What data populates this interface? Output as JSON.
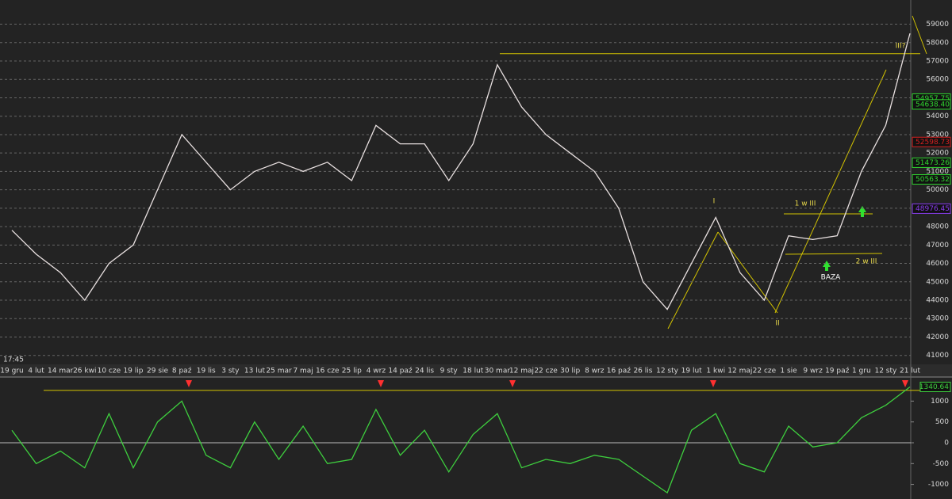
{
  "time_label": "17:45",
  "chart_data": [
    {
      "type": "line",
      "categories": [
        "19 gru",
        "4 lut",
        "14 mar",
        "26 kwi",
        "10 cze",
        "19 lip",
        "29 sie",
        "8 paź",
        "19 lis",
        "3 sty",
        "13 lut",
        "25 mar",
        "7 maj",
        "16 cze",
        "25 lip",
        "4 wrz",
        "14 paź",
        "24 lis",
        "9 sty",
        "18 lut",
        "30 mar",
        "12 maj",
        "22 cze",
        "30 lip",
        "8 wrz",
        "16 paź",
        "26 lis",
        "12 sty",
        "19 lut",
        "1 kwi",
        "12 maj",
        "22 cze",
        "1 sie",
        "9 wrz",
        "19 paź",
        "1 gru",
        "12 sty",
        "21 lut"
      ],
      "series": [
        {
          "color": "#e8e0e0",
          "values": [
            47800,
            46500,
            45500,
            44000,
            46000,
            47000,
            50000,
            53000,
            51500,
            50000,
            51000,
            51500,
            51000,
            51500,
            50500,
            53500,
            52500,
            52500,
            50500,
            52500,
            56800,
            54500,
            53000,
            52000,
            51000,
            49000,
            45000,
            43500,
            46000,
            48500,
            45500,
            44000,
            47500,
            47300,
            47500,
            51000,
            53500,
            58500
          ]
        }
      ],
      "ylim": [
        40600,
        60100
      ],
      "yticks": [
        41000,
        42000,
        43000,
        44000,
        45000,
        46000,
        47000,
        48000,
        49000,
        50000,
        51000,
        52000,
        53000,
        54000,
        55000,
        56000,
        57000,
        58000,
        59000
      ],
      "grid": true,
      "hline": {
        "value": 57400,
        "color": "#d4c400"
      },
      "level_labels": [
        {
          "value": 54957.75,
          "color": "#2fd62f"
        },
        {
          "value": 54638.4,
          "label": "54638.40",
          "color": "#2fd62f"
        },
        {
          "value": 52598.73,
          "color": "#d62020"
        },
        {
          "value": 51473.26,
          "color": "#2fd62f"
        },
        {
          "value": 50563.32,
          "color": "#2fd62f"
        },
        {
          "value": 48976.45,
          "color": "#8a3cf0"
        }
      ],
      "annotations": [
        "I",
        "II",
        "III?",
        "1 w III",
        "2 w III",
        "BAZA"
      ]
    },
    {
      "type": "line",
      "series": [
        {
          "color": "#3ecf3e",
          "values": [
            300,
            -500,
            -200,
            -600,
            700,
            -600,
            500,
            1000,
            -300,
            -600,
            500,
            -400,
            400,
            -500,
            -400,
            800,
            -300,
            300,
            -700,
            200,
            700,
            -600,
            -400,
            -500,
            -300,
            -400,
            -800,
            -1200,
            300,
            700,
            -500,
            -700,
            400,
            -100,
            0,
            600,
            900,
            1340.64
          ]
        }
      ],
      "ylim": [
        -1350,
        1540
      ],
      "yticks": [
        -1000,
        -500,
        0,
        500,
        1000
      ],
      "grid": false,
      "hline": {
        "value": 1257,
        "color": "#d4c400"
      },
      "zero_line": 0
    }
  ]
}
